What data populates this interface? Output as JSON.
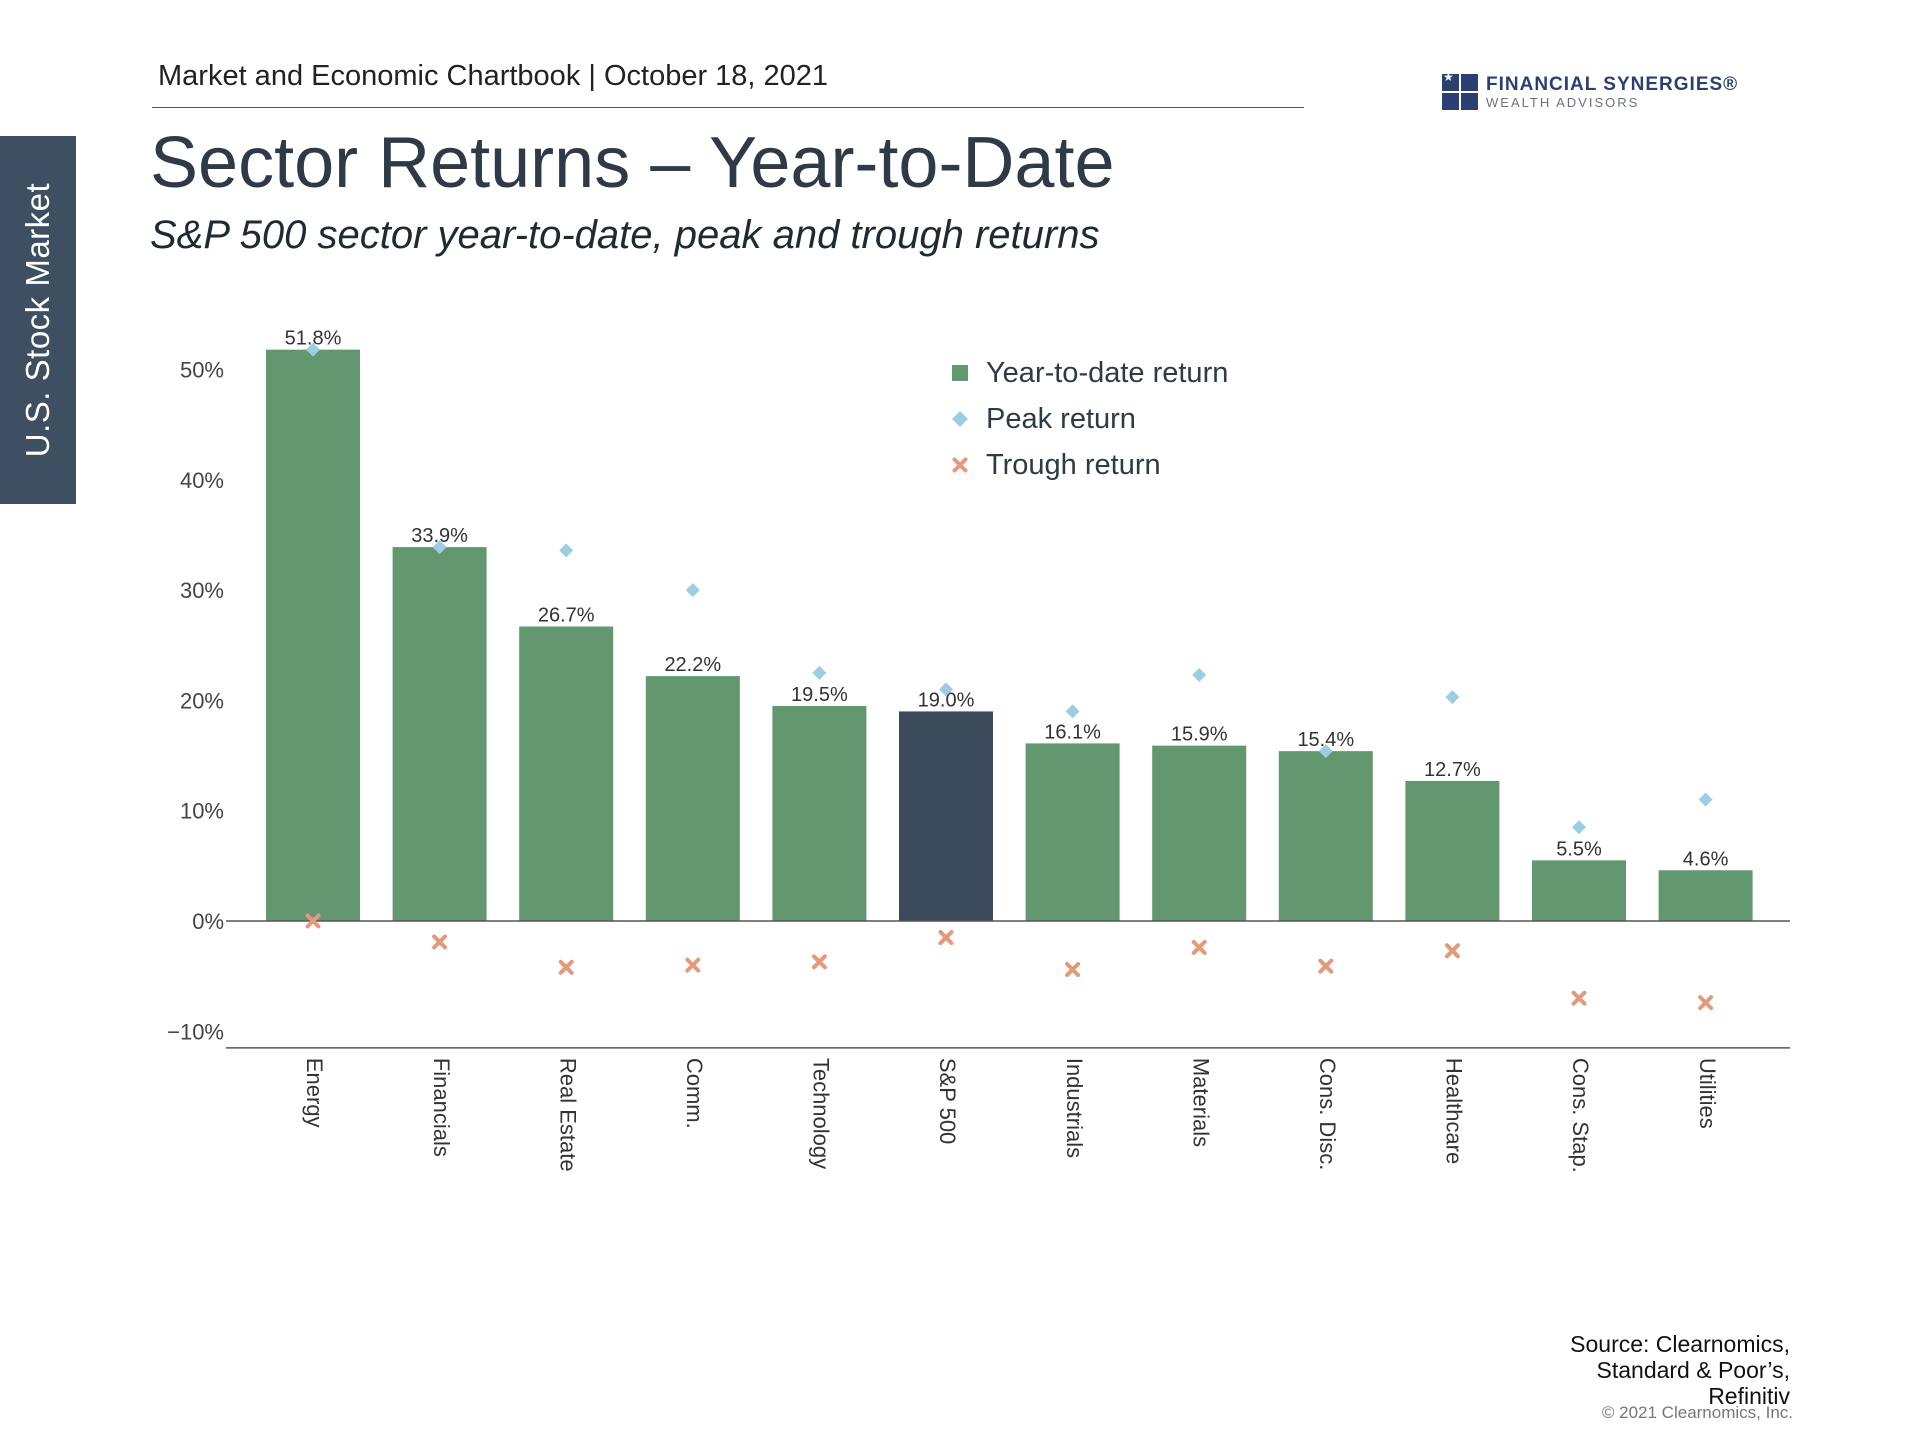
{
  "side_tab": "U.S. Stock Market",
  "header": {
    "text": "Market and Economic Chartbook | October 18, 2021"
  },
  "logo": {
    "name": "FINANCIAL SYNERGIES®",
    "sub": "WEALTH ADVISORS",
    "color": "#2b3f73"
  },
  "title": "Sector Returns – Year-to-Date",
  "subtitle": "S&P 500 sector year-to-date, peak and trough returns",
  "source": [
    "Source: Clearnomics,",
    "Standard & Poor’s,",
    "Refinitiv"
  ],
  "copyright": "© 2021 Clearnomics, Inc.",
  "chart_data": {
    "type": "bar",
    "categories": [
      "Energy",
      "Financials",
      "Real Estate",
      "Comm.",
      "Technology",
      "S&P 500",
      "Industrials",
      "Materials",
      "Cons. Disc.",
      "Healthcare",
      "Cons. Stap.",
      "Utilities"
    ],
    "series": [
      {
        "name": "Year-to-date return",
        "type": "bar",
        "values": [
          51.8,
          33.9,
          26.7,
          22.2,
          19.5,
          19.0,
          16.1,
          15.9,
          15.4,
          12.7,
          5.5,
          4.6
        ],
        "labels": [
          "51.8%",
          "33.9%",
          "26.7%",
          "22.2%",
          "19.5%",
          "19.0%",
          "16.1%",
          "15.9%",
          "15.4%",
          "12.7%",
          "5.5%",
          "4.6%"
        ],
        "color": "#62976f",
        "highlight_color": "#3b4b5b",
        "highlight_index": 5
      },
      {
        "name": "Peak return",
        "type": "scatter",
        "marker": "diamond",
        "values": [
          51.8,
          33.9,
          33.6,
          30.0,
          22.5,
          21.0,
          19.0,
          22.3,
          15.4,
          20.3,
          8.5,
          11.0
        ],
        "color": "#9ecde3"
      },
      {
        "name": "Trough return",
        "type": "scatter",
        "marker": "x",
        "values": [
          0.0,
          -1.9,
          -4.2,
          -4.0,
          -3.7,
          -1.5,
          -4.4,
          -2.4,
          -4.1,
          -2.7,
          -7.0,
          -7.4
        ],
        "color": "#e39a7c"
      }
    ],
    "yticks": [
      -10,
      0,
      10,
      20,
      30,
      40,
      50
    ],
    "ytick_labels": [
      "−10%",
      "0%",
      "10%",
      "20%",
      "30%",
      "40%",
      "50%"
    ],
    "ylim": [
      -11.5,
      53
    ],
    "legend": "top-right",
    "grid": false
  }
}
